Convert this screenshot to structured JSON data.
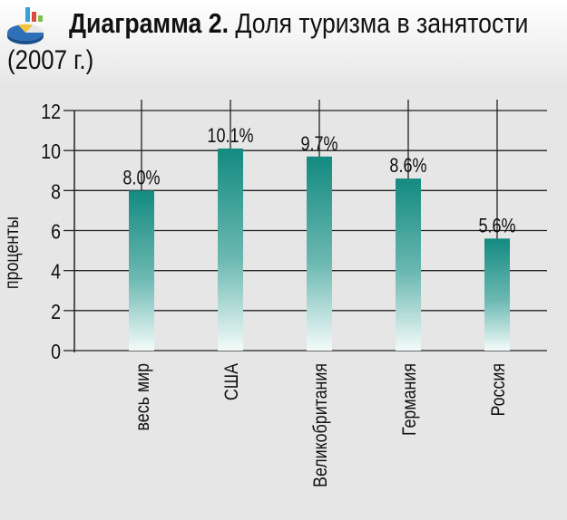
{
  "header": {
    "title_bold": "Диаграмма 2.",
    "title_rest": "Доля туризма в занятости",
    "title_year": "(2007 г.)"
  },
  "icons": {
    "logo": "chart-logo-icon"
  },
  "colors": {
    "bar_top": "#138a80",
    "bar_bottom": "#f4fbfa",
    "grid": "#222222",
    "plot_bg": "#e6e6e6"
  },
  "chart_data": {
    "type": "bar",
    "title": "Диаграмма 2. Доля туризма в занятости (2007 г.)",
    "xlabel": "",
    "ylabel": "проценты",
    "ylim": [
      0,
      12
    ],
    "yticks": [
      0,
      2,
      4,
      6,
      8,
      10,
      12
    ],
    "grid": true,
    "categories": [
      "весь мир",
      "США",
      "Великобритания",
      "Германия",
      "Россия"
    ],
    "values": [
      8.0,
      10.1,
      9.7,
      8.6,
      5.6
    ],
    "data_labels": [
      "8.0%",
      "10.1%",
      "9.7%",
      "8.6%",
      "5.6%"
    ]
  }
}
